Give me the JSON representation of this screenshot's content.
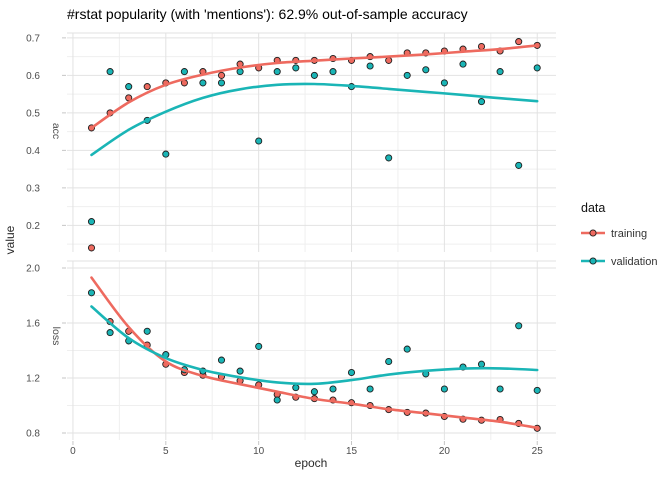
{
  "chart_data": {
    "type": "scatter",
    "title": "#rstat popularity (with 'mentions'): 62.9% out-of-sample accuracy",
    "xlabel": "epoch",
    "ylabel": "value",
    "x_ticks": [
      0,
      5,
      10,
      15,
      20,
      25
    ],
    "x_minor_ticks": [
      2.5,
      7.5,
      12.5,
      17.5,
      22.5
    ],
    "xlim": [
      -0.32,
      26.01
    ],
    "grid": "major and minor, light gray on white",
    "legend": {
      "title": "data",
      "position": "right",
      "entries": [
        {
          "label": "training",
          "color": "#ee6a5f"
        },
        {
          "label": "validation",
          "color": "#1ab5b6"
        }
      ]
    },
    "facets": [
      {
        "label": "acc",
        "ylim": [
          0.129,
          0.713
        ],
        "y_ticks": [
          0.7,
          0.6,
          0.5,
          0.4,
          0.3,
          0.2
        ],
        "y_minor_ticks": [
          0.65,
          0.55,
          0.45,
          0.35,
          0.25,
          0.15
        ],
        "series": [
          {
            "name": "training",
            "color": "#ee6a5f",
            "points": [
              [
                1,
                0.46
              ],
              [
                1,
                0.14
              ],
              [
                2,
                0.5
              ],
              [
                3,
                0.54
              ],
              [
                4,
                0.57
              ],
              [
                5,
                0.58
              ],
              [
                6,
                0.58
              ],
              [
                7,
                0.61
              ],
              [
                8,
                0.6
              ],
              [
                9,
                0.63
              ],
              [
                10,
                0.62
              ],
              [
                11,
                0.64
              ],
              [
                12,
                0.64
              ],
              [
                13,
                0.64
              ],
              [
                14,
                0.645
              ],
              [
                15,
                0.64
              ],
              [
                16,
                0.65
              ],
              [
                17,
                0.64
              ],
              [
                18,
                0.66
              ],
              [
                19,
                0.66
              ],
              [
                20,
                0.665
              ],
              [
                21,
                0.67
              ],
              [
                22,
                0.677
              ],
              [
                23,
                0.665
              ],
              [
                24,
                0.69
              ],
              [
                25,
                0.68
              ]
            ],
            "smooth": [
              [
                1,
                0.46
              ],
              [
                3,
                0.528
              ],
              [
                5,
                0.575
              ],
              [
                7,
                0.602
              ],
              [
                9,
                0.621
              ],
              [
                11,
                0.633
              ],
              [
                13,
                0.639
              ],
              [
                15,
                0.645
              ],
              [
                17,
                0.65
              ],
              [
                19,
                0.656
              ],
              [
                21,
                0.663
              ],
              [
                23,
                0.67
              ],
              [
                25,
                0.68
              ]
            ]
          },
          {
            "name": "validation",
            "color": "#1ab5b6",
            "points": [
              [
                1,
                0.21
              ],
              [
                2,
                0.61
              ],
              [
                3,
                0.57
              ],
              [
                4,
                0.48
              ],
              [
                5,
                0.39
              ],
              [
                6,
                0.61
              ],
              [
                7,
                0.58
              ],
              [
                8,
                0.58
              ],
              [
                9,
                0.61
              ],
              [
                10,
                0.425
              ],
              [
                11,
                0.61
              ],
              [
                12,
                0.62
              ],
              [
                13,
                0.6
              ],
              [
                14,
                0.61
              ],
              [
                15,
                0.57
              ],
              [
                16,
                0.625
              ],
              [
                17,
                0.38
              ],
              [
                18,
                0.6
              ],
              [
                19,
                0.615
              ],
              [
                20,
                0.58
              ],
              [
                21,
                0.63
              ],
              [
                22,
                0.53
              ],
              [
                23,
                0.61
              ],
              [
                24,
                0.36
              ],
              [
                25,
                0.62
              ]
            ],
            "smooth": [
              [
                1,
                0.388
              ],
              [
                3,
                0.455
              ],
              [
                5,
                0.503
              ],
              [
                7,
                0.54
              ],
              [
                9,
                0.563
              ],
              [
                11,
                0.575
              ],
              [
                13,
                0.577
              ],
              [
                15,
                0.572
              ],
              [
                17,
                0.564
              ],
              [
                19,
                0.556
              ],
              [
                21,
                0.548
              ],
              [
                23,
                0.539
              ],
              [
                25,
                0.531
              ]
            ]
          }
        ]
      },
      {
        "label": "loss",
        "ylim": [
          0.749,
          2.051
        ],
        "y_ticks": [
          2.0,
          1.6,
          1.2,
          0.8
        ],
        "y_minor_ticks": [
          1.8,
          1.4,
          1.0
        ],
        "series": [
          {
            "name": "training",
            "color": "#ee6a5f",
            "points": [
              [
                2,
                1.61
              ],
              [
                3,
                1.54
              ],
              [
                4,
                1.44
              ],
              [
                5,
                1.3
              ],
              [
                6,
                1.24
              ],
              [
                7,
                1.22
              ],
              [
                8,
                1.21
              ],
              [
                9,
                1.18
              ],
              [
                10,
                1.15
              ],
              [
                11,
                1.08
              ],
              [
                12,
                1.06
              ],
              [
                13,
                1.05
              ],
              [
                14,
                1.04
              ],
              [
                15,
                1.02
              ],
              [
                16,
                1.0
              ],
              [
                17,
                0.97
              ],
              [
                18,
                0.95
              ],
              [
                19,
                0.945
              ],
              [
                20,
                0.92
              ],
              [
                21,
                0.9
              ],
              [
                22,
                0.893
              ],
              [
                23,
                0.898
              ],
              [
                24,
                0.87
              ],
              [
                25,
                0.834
              ]
            ],
            "smooth": [
              [
                1,
                1.93
              ],
              [
                3,
                1.57
              ],
              [
                5,
                1.32
              ],
              [
                7,
                1.215
              ],
              [
                9,
                1.155
              ],
              [
                11,
                1.1
              ],
              [
                13,
                1.048
              ],
              [
                15,
                1.013
              ],
              [
                17,
                0.973
              ],
              [
                19,
                0.943
              ],
              [
                21,
                0.912
              ],
              [
                23,
                0.882
              ],
              [
                25,
                0.838
              ]
            ]
          },
          {
            "name": "validation",
            "color": "#1ab5b6",
            "points": [
              [
                1,
                1.82
              ],
              [
                2,
                1.53
              ],
              [
                3,
                1.47
              ],
              [
                4,
                1.54
              ],
              [
                5,
                1.37
              ],
              [
                6,
                1.26
              ],
              [
                7,
                1.25
              ],
              [
                8,
                1.33
              ],
              [
                9,
                1.25
              ],
              [
                10,
                1.43
              ],
              [
                11,
                1.04
              ],
              [
                12,
                1.13
              ],
              [
                13,
                1.1
              ],
              [
                14,
                1.12
              ],
              [
                15,
                1.24
              ],
              [
                16,
                1.12
              ],
              [
                17,
                1.32
              ],
              [
                18,
                1.41
              ],
              [
                19,
                1.23
              ],
              [
                20,
                1.12
              ],
              [
                21,
                1.28
              ],
              [
                22,
                1.3
              ],
              [
                23,
                1.12
              ],
              [
                24,
                1.58
              ],
              [
                25,
                1.11
              ]
            ],
            "smooth": [
              [
                1,
                1.72
              ],
              [
                3,
                1.49
              ],
              [
                5,
                1.345
              ],
              [
                7,
                1.258
              ],
              [
                9,
                1.205
              ],
              [
                11,
                1.168
              ],
              [
                13,
                1.158
              ],
              [
                15,
                1.185
              ],
              [
                17,
                1.225
              ],
              [
                19,
                1.252
              ],
              [
                21,
                1.268
              ],
              [
                23,
                1.27
              ],
              [
                25,
                1.258
              ]
            ]
          }
        ]
      }
    ]
  }
}
